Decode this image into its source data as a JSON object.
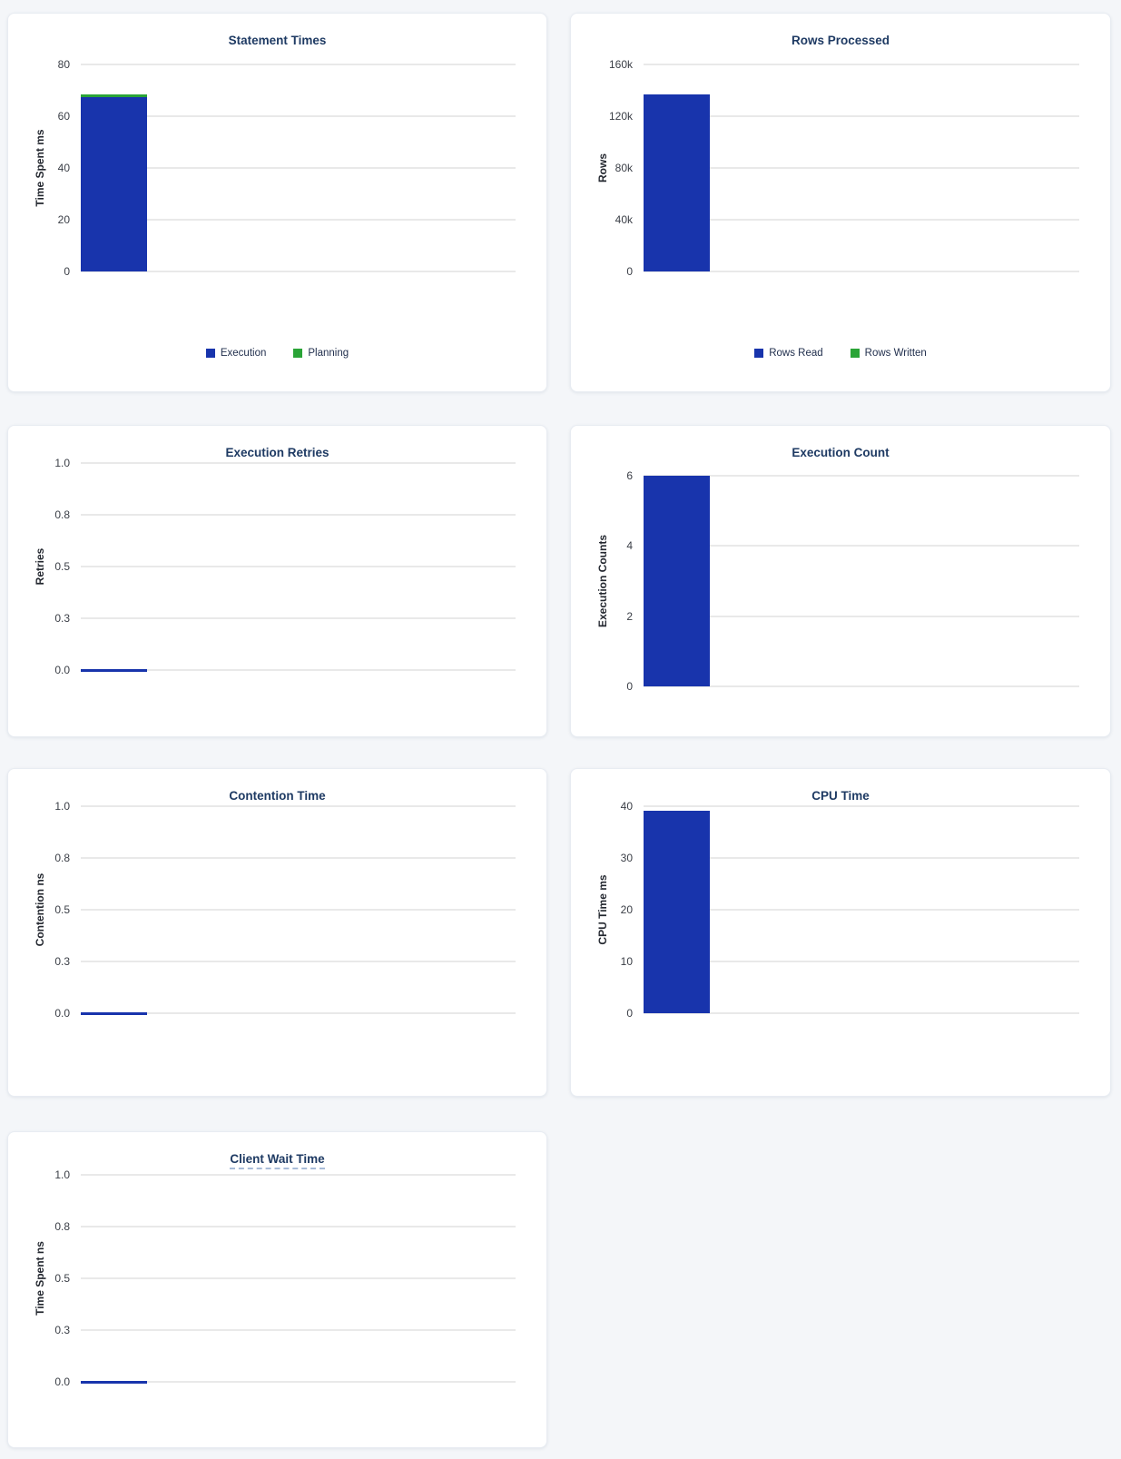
{
  "page": {
    "background_color": "#f4f6f9",
    "card_color": "#ffffff",
    "title_color": "#1e3a63",
    "gridline_color": "#e9e9e9"
  },
  "chart_data": [
    {
      "type": "bar",
      "title": "Statement Times",
      "ylabel": "Time Spent ms",
      "ylim": [
        0,
        80
      ],
      "yticks": [
        "80",
        "60",
        "40",
        "20",
        "0"
      ],
      "grid": true,
      "stacked": true,
      "legend": true,
      "legend_position": "bottom",
      "series": [
        {
          "name": "Execution",
          "color": "#1834ac",
          "value": 67.5
        },
        {
          "name": "Planning",
          "color": "#2aa437",
          "value": 0.9
        }
      ]
    },
    {
      "type": "bar",
      "title": "Rows Processed",
      "ylabel": "Rows",
      "ylim": [
        0,
        160000
      ],
      "yticks": [
        "160k",
        "120k",
        "80k",
        "40k",
        "0"
      ],
      "grid": true,
      "stacked": true,
      "legend": true,
      "legend_position": "bottom",
      "series": [
        {
          "name": "Rows Read",
          "color": "#1834ac",
          "value": 137000
        },
        {
          "name": "Rows Written",
          "color": "#2aa437",
          "value": 0
        }
      ]
    },
    {
      "type": "bar",
      "title": "Execution Retries",
      "ylabel": "Retries",
      "ylim": [
        0,
        1
      ],
      "yticks": [
        "1.0",
        "0.8",
        "0.5",
        "0.3",
        "0.0"
      ],
      "grid": true,
      "stacked": false,
      "legend": false,
      "series": [
        {
          "name": "Retries",
          "color": "#1834ac",
          "value": 0
        }
      ]
    },
    {
      "type": "bar",
      "title": "Execution Count",
      "ylabel": "Execution Counts",
      "ylim": [
        0,
        6
      ],
      "yticks": [
        "6",
        "4",
        "2",
        "0"
      ],
      "grid": true,
      "stacked": false,
      "legend": false,
      "series": [
        {
          "name": "Execution Count",
          "color": "#1834ac",
          "value": 6
        }
      ]
    },
    {
      "type": "bar",
      "title": "Contention Time",
      "ylabel": "Contention ns",
      "ylim": [
        0,
        1
      ],
      "yticks": [
        "1.0",
        "0.8",
        "0.5",
        "0.3",
        "0.0"
      ],
      "grid": true,
      "stacked": false,
      "legend": false,
      "series": [
        {
          "name": "Contention",
          "color": "#1834ac",
          "value": 0
        }
      ]
    },
    {
      "type": "bar",
      "title": "CPU Time",
      "ylabel": "CPU Time ms",
      "ylim": [
        0,
        40
      ],
      "yticks": [
        "40",
        "30",
        "20",
        "10",
        "0"
      ],
      "grid": true,
      "stacked": false,
      "legend": false,
      "series": [
        {
          "name": "CPU Time",
          "color": "#1834ac",
          "value": 39.2
        }
      ]
    },
    {
      "type": "bar",
      "title": "Client Wait Time",
      "title_underline": "dashed",
      "ylabel": "Time Spent ns",
      "ylim": [
        0,
        1
      ],
      "yticks": [
        "1.0",
        "0.8",
        "0.5",
        "0.3",
        "0.0"
      ],
      "grid": true,
      "stacked": false,
      "legend": false,
      "series": [
        {
          "name": "Client Wait Time",
          "color": "#1834ac",
          "value": 0
        }
      ]
    }
  ]
}
